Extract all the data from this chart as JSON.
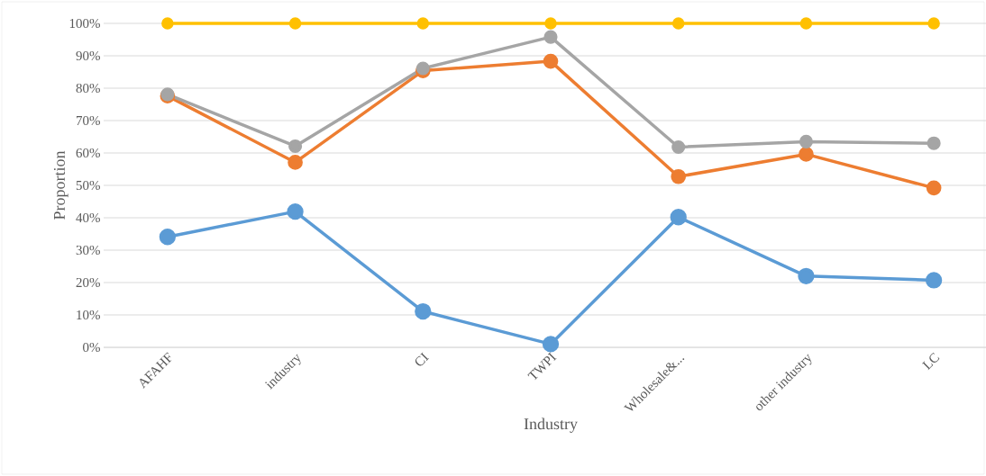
{
  "chart_data": {
    "type": "line",
    "xlabel": "Industry",
    "ylabel": "Proportion",
    "categories": [
      "AFAHF",
      "industry",
      "CI",
      "TWPI",
      "Wholesale&...",
      "other industry",
      "LC"
    ],
    "series": [
      {
        "color": "#5b9bd5",
        "values": [
          34.1,
          41.9,
          11.1,
          1.0,
          40.2,
          22.0,
          20.7
        ]
      },
      {
        "color": "#ed7d31",
        "values": [
          77.6,
          57.1,
          85.4,
          88.3,
          52.7,
          59.6,
          49.2
        ]
      },
      {
        "color": "#a5a5a5",
        "values": [
          78.1,
          62.1,
          86.1,
          95.8,
          61.8,
          63.5,
          63.0
        ]
      },
      {
        "color": "#ffc000",
        "values": [
          100,
          100,
          100,
          100,
          100,
          100,
          100
        ]
      }
    ],
    "ylim": [
      0,
      100
    ],
    "yticks": [
      {
        "value": 0,
        "label": "0%"
      },
      {
        "value": 10,
        "label": "10%"
      },
      {
        "value": 20,
        "label": "20%"
      },
      {
        "value": 30,
        "label": "30%"
      },
      {
        "value": 40,
        "label": "40%"
      },
      {
        "value": 50,
        "label": "50%"
      },
      {
        "value": 60,
        "label": "60%"
      },
      {
        "value": 70,
        "label": "70%"
      },
      {
        "value": 80,
        "label": "80%"
      },
      {
        "value": 90,
        "label": "90%"
      },
      {
        "value": 100,
        "label": "100%"
      }
    ],
    "grid": "y",
    "marker": "circle"
  }
}
